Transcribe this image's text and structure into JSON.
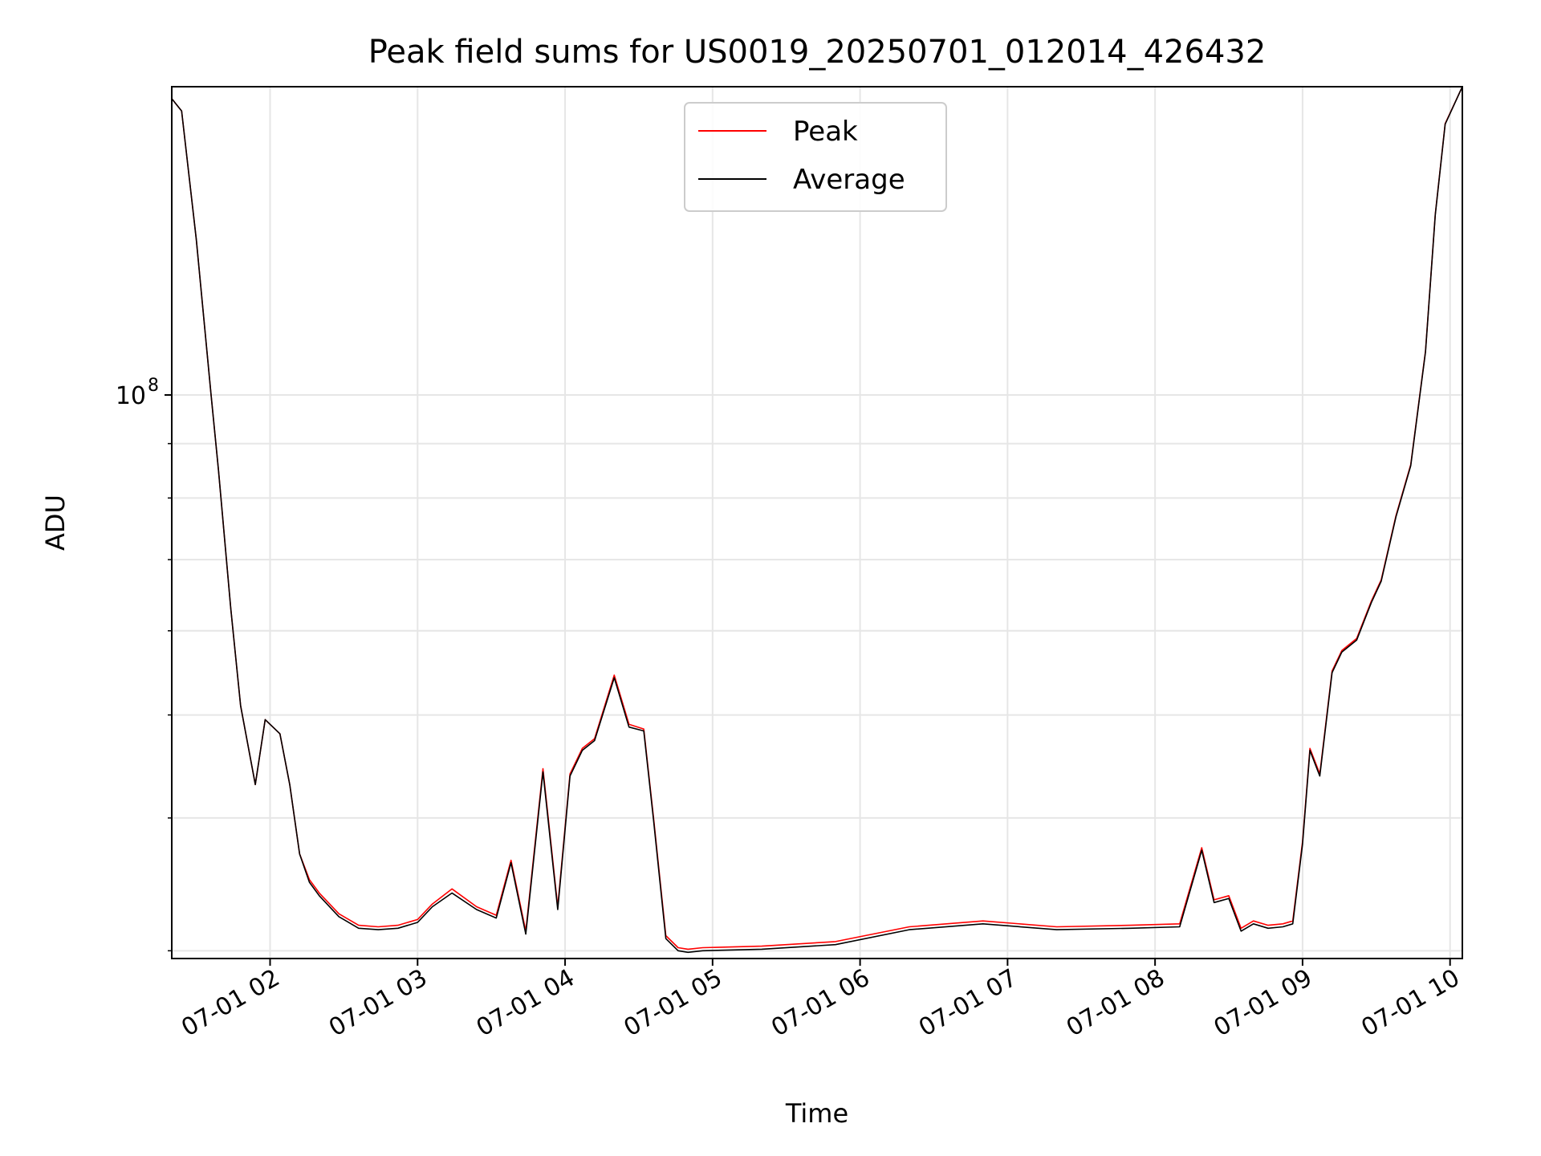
{
  "chart_data": {
    "type": "line",
    "title": "Peak field sums for US0019_20250701_012014_426432",
    "xlabel": "Time",
    "ylabel": "ADU",
    "yscale": "log",
    "xlim": [
      "2025-07-01 01:20",
      "2025-07-01 10:05"
    ],
    "ylim": [
      29500000,
      195000000
    ],
    "grid": true,
    "legend_position": "upper center",
    "x_ticks": [
      "07-01 02",
      "07-01 03",
      "07-01 04",
      "07-01 05",
      "07-01 06",
      "07-01 07",
      "07-01 08",
      "07-01 09",
      "07-01 10"
    ],
    "y_ticks": [
      {
        "value": 100000000,
        "base": "10",
        "exponent": "8"
      }
    ],
    "series": [
      {
        "name": "Peak",
        "color": "#ff0000",
        "x": [
          "2025-07-01 01:20",
          "2025-07-01 01:24",
          "2025-07-01 01:30",
          "2025-07-01 01:36",
          "2025-07-01 01:39",
          "2025-07-01 01:40",
          "2025-07-01 01:44",
          "2025-07-01 01:48",
          "2025-07-01 01:54",
          "2025-07-01 01:58",
          "2025-07-01 02:04",
          "2025-07-01 02:08",
          "2025-07-01 02:12",
          "2025-07-01 02:16",
          "2025-07-01 02:20",
          "2025-07-01 02:28",
          "2025-07-01 02:36",
          "2025-07-01 02:44",
          "2025-07-01 02:52",
          "2025-07-01 03:00",
          "2025-07-01 03:06",
          "2025-07-01 03:14",
          "2025-07-01 03:24",
          "2025-07-01 03:32",
          "2025-07-01 03:38",
          "2025-07-01 03:44",
          "2025-07-01 03:51",
          "2025-07-01 03:57",
          "2025-07-01 04:02",
          "2025-07-01 04:07",
          "2025-07-01 04:12",
          "2025-07-01 04:20",
          "2025-07-01 04:26",
          "2025-07-01 04:32",
          "2025-07-01 04:36",
          "2025-07-01 04:41",
          "2025-07-01 04:46",
          "2025-07-01 04:50",
          "2025-07-01 04:56",
          "2025-07-01 05:20",
          "2025-07-01 05:50",
          "2025-07-01 06:20",
          "2025-07-01 06:50",
          "2025-07-01 07:20",
          "2025-07-01 07:50",
          "2025-07-01 08:10",
          "2025-07-01 08:19",
          "2025-07-01 08:24",
          "2025-07-01 08:30",
          "2025-07-01 08:35",
          "2025-07-01 08:40",
          "2025-07-01 08:46",
          "2025-07-01 08:52",
          "2025-07-01 08:56",
          "2025-07-01 09:00",
          "2025-07-01 09:03",
          "2025-07-01 09:07",
          "2025-07-01 09:12",
          "2025-07-01 09:16",
          "2025-07-01 09:22",
          "2025-07-01 09:28",
          "2025-07-01 09:32",
          "2025-07-01 09:38",
          "2025-07-01 09:44",
          "2025-07-01 09:50",
          "2025-07-01 09:54",
          "2025-07-01 09:58",
          "2025-07-01 10:05"
        ],
        "y": [
          190000000,
          185000000,
          140000000,
          100000000,
          85000000,
          80000000,
          63000000,
          51000000,
          43000000,
          49500000,
          48000000,
          43000000,
          37000000,
          35000000,
          34000000,
          32500000,
          31700000,
          31600000,
          31700000,
          32100000,
          33200000,
          34300000,
          33000000,
          32400000,
          36500000,
          31300000,
          44500000,
          33000000,
          44000000,
          46500000,
          47500000,
          54500000,
          49000000,
          48500000,
          40000000,
          31000000,
          30200000,
          30100000,
          30200000,
          30300000,
          30600000,
          31600000,
          32000000,
          31600000,
          31700000,
          31800000,
          37500000,
          33500000,
          33800000,
          31500000,
          32000000,
          31700000,
          31800000,
          32000000,
          38000000,
          46500000,
          44000000,
          55000000,
          57500000,
          59000000,
          64000000,
          67000000,
          77000000,
          86000000,
          110000000,
          148000000,
          180000000,
          195000000
        ]
      },
      {
        "name": "Average",
        "color": "#000000",
        "x": [
          "2025-07-01 01:20",
          "2025-07-01 01:24",
          "2025-07-01 01:30",
          "2025-07-01 01:36",
          "2025-07-01 01:39",
          "2025-07-01 01:40",
          "2025-07-01 01:44",
          "2025-07-01 01:48",
          "2025-07-01 01:54",
          "2025-07-01 01:58",
          "2025-07-01 02:04",
          "2025-07-01 02:08",
          "2025-07-01 02:12",
          "2025-07-01 02:16",
          "2025-07-01 02:20",
          "2025-07-01 02:28",
          "2025-07-01 02:36",
          "2025-07-01 02:44",
          "2025-07-01 02:52",
          "2025-07-01 03:00",
          "2025-07-01 03:06",
          "2025-07-01 03:14",
          "2025-07-01 03:24",
          "2025-07-01 03:32",
          "2025-07-01 03:38",
          "2025-07-01 03:44",
          "2025-07-01 03:51",
          "2025-07-01 03:57",
          "2025-07-01 04:02",
          "2025-07-01 04:07",
          "2025-07-01 04:12",
          "2025-07-01 04:20",
          "2025-07-01 04:26",
          "2025-07-01 04:32",
          "2025-07-01 04:36",
          "2025-07-01 04:41",
          "2025-07-01 04:46",
          "2025-07-01 04:50",
          "2025-07-01 04:56",
          "2025-07-01 05:20",
          "2025-07-01 05:50",
          "2025-07-01 06:20",
          "2025-07-01 06:50",
          "2025-07-01 07:20",
          "2025-07-01 07:50",
          "2025-07-01 08:10",
          "2025-07-01 08:19",
          "2025-07-01 08:24",
          "2025-07-01 08:30",
          "2025-07-01 08:35",
          "2025-07-01 08:40",
          "2025-07-01 08:46",
          "2025-07-01 08:52",
          "2025-07-01 08:56",
          "2025-07-01 09:00",
          "2025-07-01 09:03",
          "2025-07-01 09:07",
          "2025-07-01 09:12",
          "2025-07-01 09:16",
          "2025-07-01 09:22",
          "2025-07-01 09:28",
          "2025-07-01 09:32",
          "2025-07-01 09:38",
          "2025-07-01 09:44",
          "2025-07-01 09:50",
          "2025-07-01 09:54",
          "2025-07-01 09:58",
          "2025-07-01 10:05"
        ],
        "y": [
          190000000,
          185000000,
          140000000,
          100000000,
          85000000,
          80000000,
          63000000,
          51000000,
          43000000,
          49500000,
          48000000,
          43000000,
          37000000,
          34800000,
          33800000,
          32300000,
          31500000,
          31400000,
          31500000,
          31900000,
          33000000,
          34000000,
          32800000,
          32200000,
          36300000,
          31100000,
          44200000,
          32800000,
          43800000,
          46300000,
          47300000,
          54200000,
          48700000,
          48300000,
          39800000,
          30800000,
          30000000,
          29900000,
          30000000,
          30100000,
          30400000,
          31400000,
          31800000,
          31400000,
          31500000,
          31600000,
          37300000,
          33300000,
          33600000,
          31300000,
          31800000,
          31500000,
          31600000,
          31800000,
          37800000,
          46300000,
          43800000,
          54800000,
          57300000,
          58800000,
          63800000,
          66800000,
          76800000,
          85800000,
          109800000,
          147800000,
          179800000,
          195000000
        ]
      }
    ]
  }
}
